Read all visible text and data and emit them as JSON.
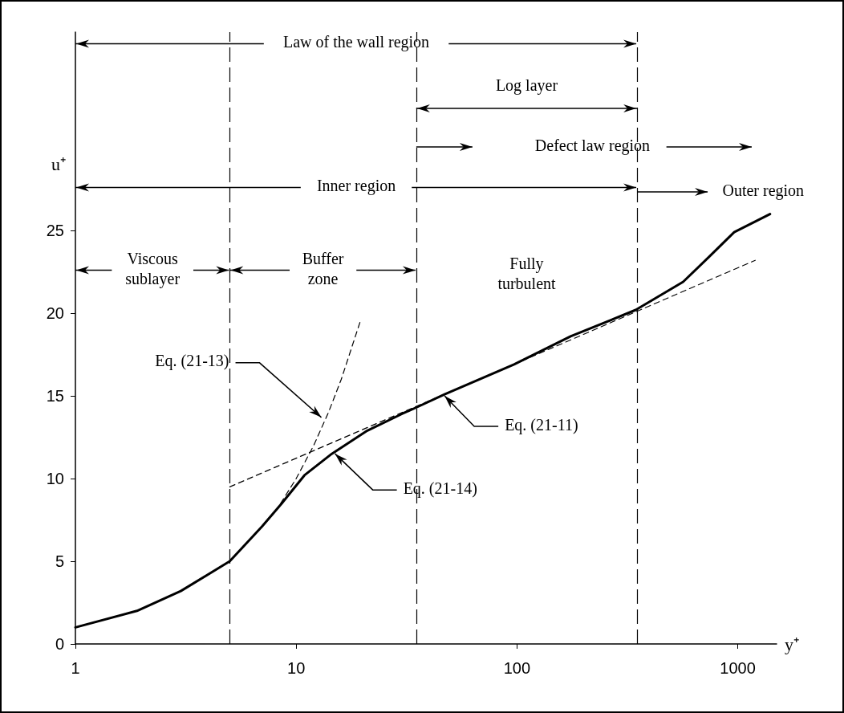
{
  "chart_data": {
    "type": "line",
    "xlabel": "y⁺",
    "ylabel": "u⁺",
    "log": "x",
    "xlim": [
      1,
      1500
    ],
    "xticks": [
      1,
      10,
      100,
      1000
    ],
    "ylim": [
      0,
      37
    ],
    "yticks": [
      0,
      5,
      10,
      15,
      20,
      25
    ],
    "grid": false,
    "series": [
      {
        "color": "#000000",
        "line_style": "solid",
        "x": [
          1,
          1.9,
          3,
          5,
          7,
          8.6,
          10.9,
          14.5,
          21,
          30,
          35,
          47,
          97,
          175,
          345,
          566,
          740,
          964,
          1400
        ],
        "values": [
          1.0,
          2.0,
          3.2,
          5.0,
          7.1,
          8.5,
          10.2,
          11.5,
          12.9,
          13.9,
          14.3,
          15.1,
          16.9,
          18.6,
          20.2,
          21.9,
          23.4,
          24.9,
          26.0
        ]
      },
      {
        "color": "#000000",
        "line_style": "dashed",
        "x": [
          5,
          1200
        ],
        "values": [
          9.5,
          23.2
        ]
      },
      {
        "color": "#000000",
        "line_style": "dashed",
        "x": [
          8.5,
          10,
          12,
          14,
          16,
          19.5
        ],
        "values": [
          8.5,
          10,
          12,
          14,
          16,
          19.5
        ]
      }
    ],
    "ref_lines": [
      {
        "axis": "x",
        "value": 5,
        "color": "#000000",
        "line_style": "dashed"
      },
      {
        "axis": "x",
        "value": 35,
        "color": "#000000",
        "line_style": "dashed"
      },
      {
        "axis": "x",
        "value": 350,
        "color": "#000000",
        "line_style": "dashed"
      }
    ],
    "annotations": [
      {
        "text": "Law of the wall region",
        "x": 350,
        "y": 36.3
      },
      "Log layer",
      "Defect law region",
      {
        "text": "Inner region",
        "x": 350,
        "y": 27.6
      },
      "Outer region",
      {
        "text": "Viscous sublayer",
        "x": 5,
        "y": 22.6
      },
      {
        "text": "Buffer zone",
        "x": 35,
        "y": 22.6
      },
      "Fully turbulent",
      {
        "text": "Eq. (21-13)",
        "x": 13,
        "y": 13.7
      },
      {
        "text": "Eq. (21-14)",
        "x": 15,
        "y": 11.5
      },
      {
        "text": "Eq. (21-11)",
        "x": 47,
        "y": 15.0
      }
    ]
  }
}
